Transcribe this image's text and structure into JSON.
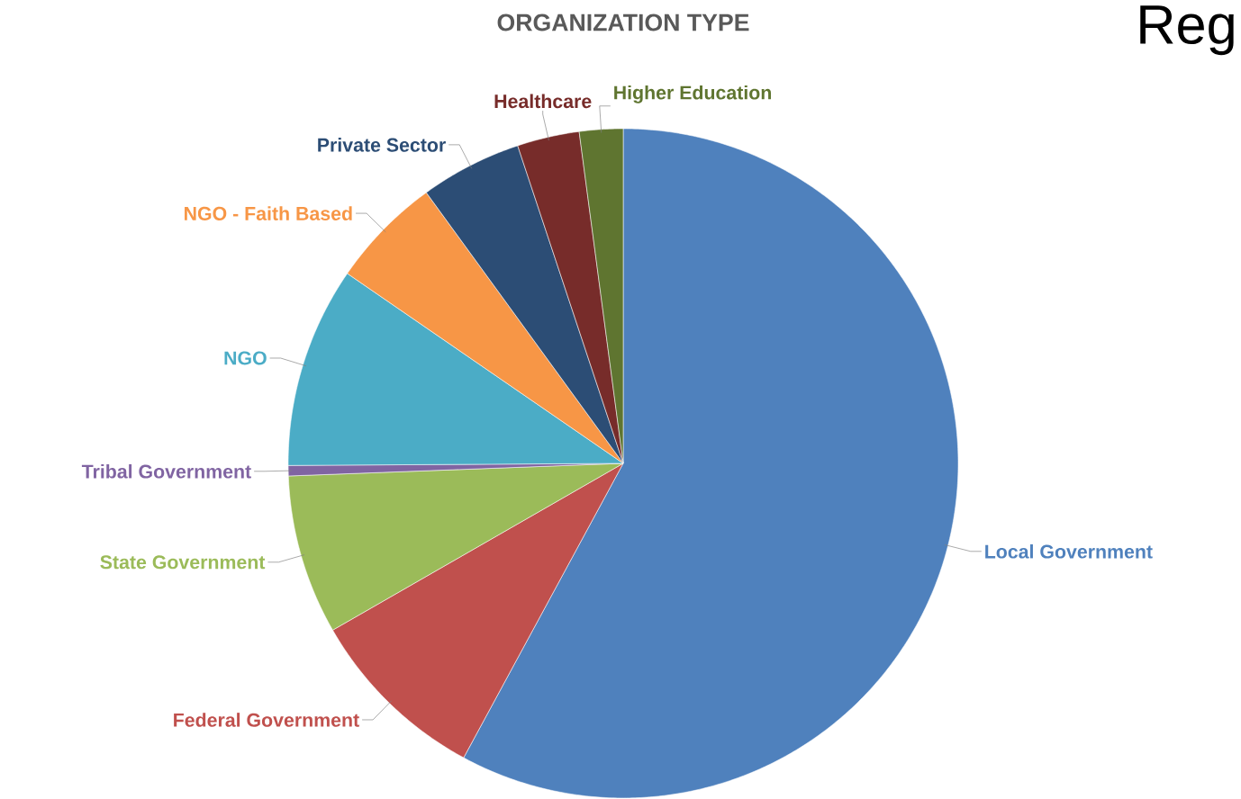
{
  "chart_data": {
    "type": "pie",
    "title": "ORGANIZATION TYPE",
    "categories": [
      "Local Government",
      "Federal Government",
      "State Government",
      "Tribal Government",
      "NGO",
      "NGO - Faith Based",
      "Private Sector",
      "Healthcare",
      "Higher Education"
    ],
    "values": [
      57.9,
      8.8,
      7.7,
      0.5,
      9.7,
      5.4,
      4.9,
      3.0,
      2.1
    ],
    "colors": [
      "#4f81bd",
      "#c0504d",
      "#9bbb59",
      "#8064a2",
      "#4bacc6",
      "#f79646",
      "#2c4d75",
      "#772c2a",
      "#5f7530"
    ],
    "annotations": [
      "Reg"
    ]
  }
}
